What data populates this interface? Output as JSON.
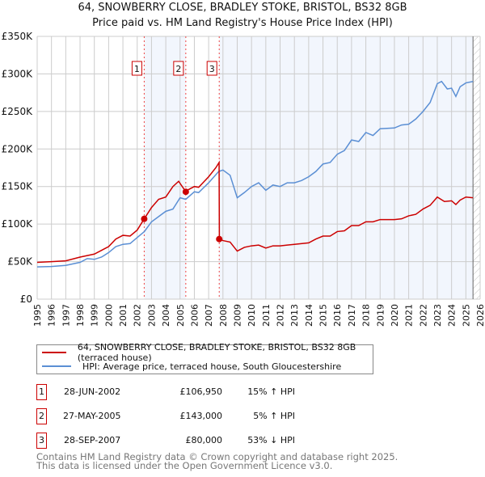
{
  "chart_data": {
    "type": "line",
    "title": "64, SNOWBERRY CLOSE, BRADLEY STOKE, BRISTOL, BS32 8GB",
    "subtitle": "Price paid vs. HM Land Registry's House Price Index (HPI)",
    "xlim": [
      1995,
      2026
    ],
    "ylim": [
      0,
      350000
    ],
    "yticks": [
      0,
      50000,
      100000,
      150000,
      200000,
      250000,
      300000,
      350000
    ],
    "ytick_labels": [
      "£0",
      "£50K",
      "£100K",
      "£150K",
      "£200K",
      "£250K",
      "£300K",
      "£350K"
    ],
    "xticks": [
      "1995",
      "1996",
      "1997",
      "1998",
      "1999",
      "2000",
      "2001",
      "2002",
      "2003",
      "2004",
      "2005",
      "2006",
      "2007",
      "2008",
      "2009",
      "2010",
      "2011",
      "2012",
      "2013",
      "2014",
      "2015",
      "2016",
      "2017",
      "2018",
      "2019",
      "2020",
      "2021",
      "2022",
      "2023",
      "2024",
      "2025",
      "2026"
    ],
    "grid": true,
    "series": [
      {
        "name": "64, SNOWBERRY CLOSE, BRADLEY STOKE, BRISTOL, BS32 8GB (terraced house)",
        "color": "#cc0000",
        "x": [
          1995,
          1996,
          1997,
          1998,
          1999,
          2000,
          2000.5,
          2001,
          2001.5,
          2002,
          2002.49,
          2003,
          2003.5,
          2004,
          2004.5,
          2004.9,
          2005.4,
          2005.6,
          2006,
          2006.3,
          2007,
          2007.5,
          2007.73,
          2007.75,
          2008,
          2008.5,
          2009,
          2009.5,
          2010,
          2010.5,
          2011,
          2011.5,
          2012,
          2012.5,
          2013,
          2014,
          2014.5,
          2015,
          2015.5,
          2016,
          2016.5,
          2017,
          2017.5,
          2018,
          2018.5,
          2019,
          2020,
          2020.5,
          2021,
          2021.5,
          2022,
          2022.5,
          2023,
          2023.5,
          2024,
          2024.3,
          2024.6,
          2025,
          2025.5
        ],
        "y": [
          49000,
          50000,
          51000,
          56000,
          60000,
          70000,
          80000,
          85000,
          84000,
          92000,
          106950,
          122000,
          133000,
          136000,
          150000,
          157000,
          143000,
          146000,
          150000,
          149000,
          163000,
          175000,
          182000,
          80000,
          78000,
          76000,
          64000,
          69000,
          71000,
          72000,
          68000,
          71000,
          71000,
          72000,
          73000,
          75000,
          80000,
          84000,
          84000,
          90000,
          91000,
          98000,
          98000,
          103000,
          103000,
          106000,
          106000,
          107000,
          111000,
          113000,
          120000,
          125000,
          136000,
          130000,
          131000,
          126000,
          132000,
          136000,
          135000
        ]
      },
      {
        "name": "HPI: Average price, terraced house, South Gloucestershire",
        "color": "#5b8fd4",
        "x": [
          1995,
          1996,
          1997,
          1998,
          1998.5,
          1999,
          1999.5,
          2000,
          2000.5,
          2001,
          2001.5,
          2002,
          2002.5,
          2003,
          2003.5,
          2004,
          2004.5,
          2005,
          2005.4,
          2006,
          2006.3,
          2007,
          2007.7,
          2008,
          2008.5,
          2009,
          2009.5,
          2010,
          2010.5,
          2011,
          2011.5,
          2012,
          2012.5,
          2013,
          2013.5,
          2014,
          2014.5,
          2015,
          2015.5,
          2016,
          2016.5,
          2017,
          2017.5,
          2018,
          2018.5,
          2019,
          2020,
          2020.5,
          2021,
          2021.5,
          2022,
          2022.5,
          2023,
          2023.3,
          2023.7,
          2024,
          2024.3,
          2024.6,
          2025,
          2025.5
        ],
        "y": [
          43000,
          43500,
          45000,
          49000,
          54000,
          53000,
          56000,
          62000,
          70000,
          73000,
          74000,
          82000,
          90000,
          103000,
          110000,
          117000,
          120000,
          135000,
          133000,
          143000,
          142000,
          155000,
          170000,
          172000,
          165000,
          135000,
          142000,
          150000,
          155000,
          145000,
          152000,
          150000,
          155000,
          155000,
          158000,
          163000,
          170000,
          180000,
          182000,
          193000,
          198000,
          212000,
          210000,
          222000,
          218000,
          227000,
          228000,
          232000,
          233000,
          240000,
          250000,
          262000,
          287000,
          290000,
          280000,
          281000,
          270000,
          283000,
          288000,
          290000
        ]
      }
    ],
    "sales": [
      {
        "label": "1",
        "x": 2002.49,
        "y": 106950,
        "date": "28-JUN-2002",
        "price": "£106,950",
        "hpi": "15% ↑ HPI"
      },
      {
        "label": "2",
        "x": 2005.4,
        "y": 143000,
        "date": "27-MAY-2005",
        "price": "£143,000",
        "hpi": "5% ↑ HPI"
      },
      {
        "label": "3",
        "x": 2007.74,
        "y": 80000,
        "date": "28-SEP-2007",
        "price": "£80,000",
        "hpi": "53% ↓ HPI"
      }
    ],
    "forecast_start": 2025.5,
    "legend_position": "bottom"
  },
  "footer": {
    "line1": "Contains HM Land Registry data © Crown copyright and database right 2025.",
    "line2": "This data is licensed under the Open Government Licence v3.0."
  }
}
